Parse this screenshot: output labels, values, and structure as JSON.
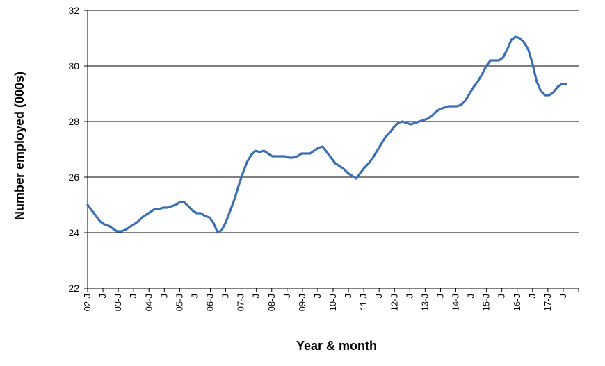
{
  "chart_data": {
    "type": "line",
    "xlabel": "Year & month",
    "ylabel": "Number employed (000s)",
    "ylim": [
      22,
      32
    ],
    "yticks": [
      "22",
      "24",
      "26",
      "28",
      "30",
      "32"
    ],
    "xticks": [
      "02-J",
      "J",
      "03-J",
      "J",
      "04-J",
      "J",
      "05-J",
      "J",
      "06-J",
      "J",
      "07-J",
      "J",
      "08-J",
      "J",
      "09-J",
      "J",
      "10-J",
      "J",
      "11-J",
      "J",
      "12-J",
      "J",
      "13-J",
      "J",
      "14-J",
      "J",
      "15-J",
      "J",
      "16-J",
      "J",
      "17-J",
      "J"
    ],
    "grid": true,
    "line_color": "#3a6fb5",
    "series": [
      {
        "points": [
          [
            0,
            25.0
          ],
          [
            1,
            24.8
          ],
          [
            2,
            24.6
          ],
          [
            3,
            24.4
          ],
          [
            4,
            24.3
          ],
          [
            5,
            24.25
          ],
          [
            6,
            24.15
          ],
          [
            7,
            24.05
          ],
          [
            8,
            24.05
          ],
          [
            9,
            24.1
          ],
          [
            10,
            24.2
          ],
          [
            11,
            24.3
          ],
          [
            12,
            24.4
          ],
          [
            13,
            24.55
          ],
          [
            14,
            24.65
          ],
          [
            15,
            24.75
          ],
          [
            16,
            24.85
          ],
          [
            17,
            24.85
          ],
          [
            18,
            24.9
          ],
          [
            19,
            24.9
          ],
          [
            20,
            24.95
          ],
          [
            21,
            25.0
          ],
          [
            22,
            25.1
          ],
          [
            23,
            25.1
          ],
          [
            24,
            24.95
          ],
          [
            25,
            24.8
          ],
          [
            26,
            24.7
          ],
          [
            27,
            24.7
          ],
          [
            28,
            24.6
          ],
          [
            29,
            24.55
          ],
          [
            30,
            24.35
          ],
          [
            31,
            24.0
          ],
          [
            32,
            24.1
          ],
          [
            33,
            24.4
          ],
          [
            34,
            24.8
          ],
          [
            35,
            25.2
          ],
          [
            36,
            25.7
          ],
          [
            37,
            26.15
          ],
          [
            38,
            26.55
          ],
          [
            39,
            26.8
          ],
          [
            40,
            26.95
          ],
          [
            41,
            26.9
          ],
          [
            42,
            26.95
          ],
          [
            43,
            26.85
          ],
          [
            44,
            26.75
          ],
          [
            45,
            26.75
          ],
          [
            46,
            26.75
          ],
          [
            47,
            26.75
          ],
          [
            48,
            26.7
          ],
          [
            49,
            26.7
          ],
          [
            50,
            26.75
          ],
          [
            51,
            26.85
          ],
          [
            52,
            26.85
          ],
          [
            53,
            26.85
          ],
          [
            54,
            26.95
          ],
          [
            55,
            27.05
          ],
          [
            56,
            27.1
          ],
          [
            57,
            26.9
          ],
          [
            58,
            26.7
          ],
          [
            59,
            26.5
          ],
          [
            60,
            26.4
          ],
          [
            61,
            26.3
          ],
          [
            62,
            26.15
          ],
          [
            63,
            26.05
          ],
          [
            64,
            25.95
          ],
          [
            65,
            26.15
          ],
          [
            66,
            26.35
          ],
          [
            67,
            26.5
          ],
          [
            68,
            26.7
          ],
          [
            69,
            26.95
          ],
          [
            70,
            27.2
          ],
          [
            71,
            27.45
          ],
          [
            72,
            27.6
          ],
          [
            73,
            27.8
          ],
          [
            74,
            27.95
          ],
          [
            75,
            28.0
          ],
          [
            76,
            27.95
          ],
          [
            77,
            27.9
          ],
          [
            78,
            27.95
          ],
          [
            79,
            28.0
          ],
          [
            80,
            28.05
          ],
          [
            81,
            28.1
          ],
          [
            82,
            28.2
          ],
          [
            83,
            28.35
          ],
          [
            84,
            28.45
          ],
          [
            85,
            28.5
          ],
          [
            86,
            28.55
          ],
          [
            87,
            28.55
          ],
          [
            88,
            28.55
          ],
          [
            89,
            28.6
          ],
          [
            90,
            28.75
          ],
          [
            91,
            29.0
          ],
          [
            92,
            29.25
          ],
          [
            93,
            29.45
          ],
          [
            94,
            29.7
          ],
          [
            95,
            30.0
          ],
          [
            96,
            30.2
          ],
          [
            97,
            30.2
          ],
          [
            98,
            30.2
          ],
          [
            99,
            30.3
          ],
          [
            100,
            30.6
          ],
          [
            101,
            30.95
          ],
          [
            102,
            31.05
          ],
          [
            103,
            31.0
          ],
          [
            104,
            30.85
          ],
          [
            105,
            30.6
          ],
          [
            106,
            30.1
          ],
          [
            107,
            29.45
          ],
          [
            108,
            29.1
          ],
          [
            109,
            28.95
          ],
          [
            110,
            28.95
          ],
          [
            111,
            29.05
          ],
          [
            112,
            29.25
          ],
          [
            113,
            29.35
          ],
          [
            114,
            29.35
          ]
        ]
      }
    ],
    "x_range": [
      0,
      117
    ]
  }
}
